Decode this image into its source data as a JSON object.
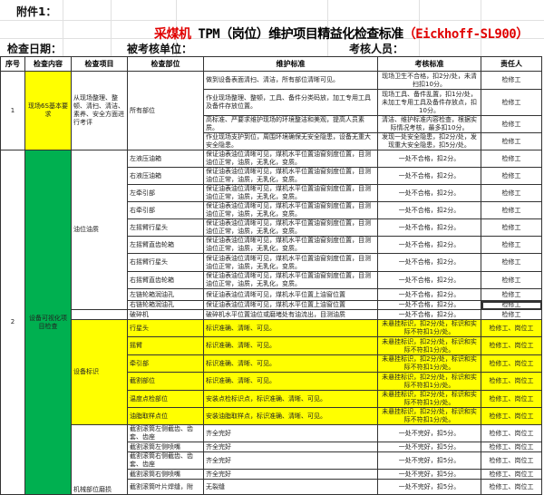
{
  "attachment": "附件1：",
  "title": {
    "prefix": "采煤机",
    "main": " TPM（岗位）维护项目精益化检查标准",
    "suffix": "（Eickhoff-SL900）"
  },
  "info": {
    "date_label": "检查日期：",
    "unit_label": "被考核单位：",
    "inspector_label": "考核人员："
  },
  "columns": [
    "序号",
    "检查内容",
    "检查项目",
    "检查部位",
    "维护标准",
    "考核标准",
    "责任人"
  ],
  "colors": {
    "yellow": "#ffff00",
    "green": "#00b050",
    "title_red": "#e00000"
  },
  "section1": {
    "seq": "1",
    "content": "现场6S基本要求",
    "item": "从现场整理、整顿、清扫、清洁、素养、安全方面进行考评",
    "part": "所有部位",
    "rows": [
      {
        "standard": "做到设备表面清扫、清洁，所有部位清晰可见。",
        "assessment": "现场卫生不合格，扣2分/处，未清扫扣10分。",
        "owner": "检修工"
      },
      {
        "standard": "作业现场整理、整顿，工具、备件分类码放，加工专用工具及备件存放位置。",
        "assessment": "现场工具、备件乱置，扣1分/处，未加工专用工具及备件存放点，扣10分。",
        "owner": "检修工"
      },
      {
        "standard": "高标准、严要求维护现场的环境整洁和美观，提高人员素质。",
        "assessment": "清洁、维护标准内容检查，根据实际情况考核，最多扣10分。",
        "owner": "检修工"
      },
      {
        "standard": "作业现场支护到位，周围环境确保无安全隐患，设备无重大安全隐患。",
        "assessment": "发现一处安全隐患，扣2分/处，发现重大安全隐患，扣5分/处。",
        "owner": "检修工"
      }
    ]
  },
  "section2": {
    "seq": "2",
    "content": "设备可视化项目检查",
    "oil": {
      "item": "油位油质",
      "rows": [
        {
          "part": "左液压油箱",
          "standard": "保证油表油位清晰可见，煤机水平位置油窗刻度位置，目测油位正常，油质，无乳化，变质。",
          "assessment": "一处不合格，扣2分。",
          "owner": "检修工"
        },
        {
          "part": "右液压油箱",
          "standard": "保证油表油位清晰可见，煤机水平位置油窗刻度位置，目测油位正常，油质，无乳化，变质。",
          "assessment": "一处不合格，扣2分。",
          "owner": "检修工"
        },
        {
          "part": "左牵引部",
          "standard": "保证油表油位清晰可见，煤机水平位置油窗刻度位置，目测油位正常，油质，无乳化，变质。",
          "assessment": "一处不合格，扣2分。",
          "owner": "检修工"
        },
        {
          "part": "右牵引部",
          "standard": "保证油表油位清晰可见，煤机水平位置油窗刻度位置，目测油位正常，油质，无乳化，变质。",
          "assessment": "一处不合格，扣2分。",
          "owner": "检修工"
        },
        {
          "part": "左摇臂行星头",
          "standard": "保证油表油位清晰可见，煤机水平位置油窗刻度位置，目测油位正常，油质，无乳化，变质。",
          "assessment": "一处不合格，扣2分。",
          "owner": "检修工"
        },
        {
          "part": "左摇臂直齿轮箱",
          "standard": "保证油表油位清晰可见，煤机水平位置油窗刻度位置，目测油位正常，油质，无乳化，变质。",
          "assessment": "一处不合格，扣2分。",
          "owner": "检修工"
        },
        {
          "part": "右摇臂行星头",
          "standard": "保证油表油位清晰可见，煤机水平位置油窗刻度位置，目测油位正常，油质，无乳化，变质。",
          "assessment": "一处不合格，扣2分。",
          "owner": "检修工"
        },
        {
          "part": "右摇臂直齿轮箱",
          "standard": "保证油表油位清晰可见，煤机水平位置油窗刻度位置，目测油位正常，油质，无乳化，变质。",
          "assessment": "一处不合格，扣2分。",
          "owner": "检修工"
        },
        {
          "part": "左链轮箱润油孔",
          "standard": "保证油表油位清晰可见，煤机水平位置上油窗位置",
          "assessment": "一处不合格，扣2分。",
          "owner": "检修工"
        },
        {
          "part": "右链轮箱润油孔",
          "standard": "保证油表油位清晰可见，煤机水平位置上油窗位置",
          "assessment": "一处不合格，扣2分。",
          "owner": "检修工"
        },
        {
          "part": "破碎机",
          "standard": "破碎机水平位置油位或磨堵处有油流出，目测油质",
          "assessment": "一处不合格，扣2分。",
          "owner": "检修工"
        }
      ]
    },
    "marking": {
      "item": "设备标识",
      "rows": [
        {
          "part": "行星头",
          "standard": "标识准确、清晰、可见。",
          "assessment": "未悬挂标识，扣2分/处，标识和实际不符扣1分/处。",
          "owner": "检修工、岗位工"
        },
        {
          "part": "摇臂",
          "standard": "标识准确、清晰、可见。",
          "assessment": "未悬挂标识，扣2分/处，标识和实际不符扣1分/处。",
          "owner": "检修工、岗位工"
        },
        {
          "part": "牵引部",
          "standard": "标识准确、清晰、可见。",
          "assessment": "未悬挂标识，扣2分/处，标识和实际不符扣1分/处。",
          "owner": "检修工、岗位工"
        },
        {
          "part": "截割部位",
          "standard": "标识准确、清晰、可见。",
          "assessment": "未悬挂标识，扣2分/处，标识和实际不符扣1分/处。",
          "owner": "检修工、岗位工"
        },
        {
          "part": "温度点检部位",
          "standard": "安装点检标识点，标识准确、清晰、可见。",
          "assessment": "未悬挂标识，扣2分/处，标识和实际不符扣1分/处。",
          "owner": "检修工、岗位工"
        },
        {
          "part": "油脂取样点位",
          "standard": "安装油脂取样点，标识准确、清晰、可见。",
          "assessment": "未悬挂标识，扣2分/处，标识和实际不符扣1分/处。",
          "owner": "检修工、岗位工"
        }
      ]
    },
    "wear": {
      "item": "机械部位磨损",
      "rows": [
        {
          "part": "截割滚筒左侧截齿、齿套、齿座",
          "standard": "齐全完好",
          "assessment": "一处不完好，扣5分。",
          "owner": "检修工、岗位工"
        },
        {
          "part": "截割滚筒左侧喷嘴",
          "standard": "齐全完好",
          "assessment": "一处不完好，扣5分。",
          "owner": "检修工、岗位工"
        },
        {
          "part": "截割滚筒右侧截齿、齿套、齿座",
          "standard": "齐全完好",
          "assessment": "一处不完好，扣5分。",
          "owner": "检修工、岗位工"
        },
        {
          "part": "截割滚筒右侧喷嘴",
          "standard": "齐全完好",
          "assessment": "一处不完好，扣5分。",
          "owner": "检修工、岗位工"
        },
        {
          "part": "截割滚筒叶片焊缝，附",
          "standard": "无裂缝",
          "assessment": "一处不完好，扣5分。",
          "owner": "检修工、岗位工"
        }
      ]
    }
  }
}
